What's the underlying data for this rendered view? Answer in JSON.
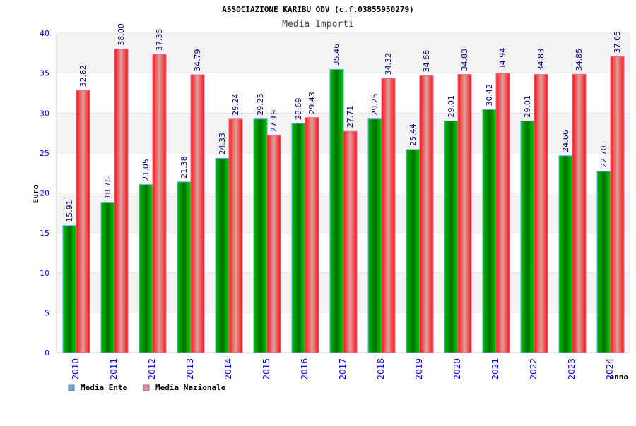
{
  "chart_data": {
    "type": "bar",
    "title": "ASSOCIAZIONE KARIBU ODV (c.f.03855950279)",
    "subtitle": "Media Importi",
    "xlabel": "anno",
    "ylabel": "Euro",
    "ylim": [
      0,
      40
    ],
    "yticks": [
      "0",
      "5",
      "10",
      "15",
      "20",
      "25",
      "30",
      "35",
      "40"
    ],
    "grid": true,
    "legend_position": "bottom-left",
    "categories": [
      "2010",
      "2011",
      "2012",
      "2013",
      "2014",
      "2015",
      "2016",
      "2017",
      "2018",
      "2019",
      "2020",
      "2021",
      "2022",
      "2023",
      "2024"
    ],
    "series": [
      {
        "name": "Media Ente",
        "color": "#00a000",
        "legend_color": "#66aaee",
        "values": [
          15.91,
          18.76,
          21.05,
          21.38,
          24.33,
          29.25,
          28.69,
          35.46,
          29.25,
          25.44,
          29.01,
          30.42,
          29.01,
          24.66,
          22.7
        ],
        "labels": [
          "15.91",
          "18.76",
          "21.05",
          "21.38",
          "24.33",
          "29.25",
          "28.69",
          "35.46",
          "29.25",
          "25.44",
          "29.01",
          "30.42",
          "29.01",
          "24.66",
          "22.70"
        ]
      },
      {
        "name": "Media Nazionale",
        "color": "#ff2020",
        "legend_color": "#ee88bb",
        "values": [
          32.82,
          38.0,
          37.35,
          34.79,
          29.24,
          27.19,
          29.43,
          27.71,
          34.32,
          34.68,
          34.83,
          34.94,
          34.83,
          34.85,
          37.05
        ],
        "labels": [
          "32.82",
          "38.00",
          "37.35",
          "34.79",
          "29.24",
          "27.19",
          "29.43",
          "27.71",
          "34.32",
          "34.68",
          "34.83",
          "34.94",
          "34.83",
          "34.85",
          "37.05"
        ]
      }
    ]
  }
}
